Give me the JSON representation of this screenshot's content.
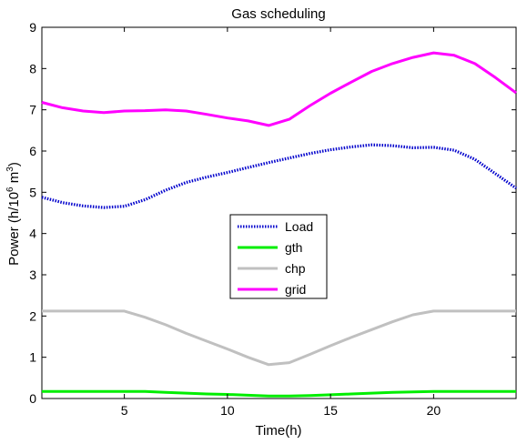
{
  "chart_data": {
    "type": "line",
    "title": "Gas scheduling",
    "xlabel": "Time(h)",
    "ylabel_main": "Power (h/10",
    "ylabel_sup": "6",
    "ylabel_tail": " m",
    "ylabel_sup2": "3",
    "ylabel_close": ")",
    "xlim": [
      1,
      24
    ],
    "ylim": [
      0,
      9
    ],
    "xticks": [
      "5",
      "10",
      "15",
      "20"
    ],
    "yticks": [
      "0",
      "1",
      "2",
      "3",
      "4",
      "5",
      "6",
      "7",
      "8",
      "9"
    ],
    "grid": false,
    "legend_position": "center",
    "x": [
      1,
      2,
      3,
      4,
      5,
      6,
      7,
      8,
      9,
      10,
      11,
      12,
      13,
      14,
      15,
      16,
      17,
      18,
      19,
      20,
      21,
      22,
      23,
      24
    ],
    "series": [
      {
        "name": "Load",
        "color": "#0000cc",
        "style": "dotted",
        "values": [
          4.88,
          4.75,
          4.67,
          4.63,
          4.66,
          4.82,
          5.05,
          5.24,
          5.37,
          5.48,
          5.6,
          5.72,
          5.83,
          5.94,
          6.03,
          6.1,
          6.15,
          6.13,
          6.08,
          6.09,
          6.02,
          5.8,
          5.45,
          5.1
        ]
      },
      {
        "name": "gth",
        "color": "#00ee00",
        "style": "solid",
        "values": [
          0.17,
          0.17,
          0.17,
          0.17,
          0.17,
          0.17,
          0.15,
          0.13,
          0.11,
          0.1,
          0.08,
          0.06,
          0.06,
          0.07,
          0.09,
          0.11,
          0.13,
          0.15,
          0.16,
          0.17,
          0.17,
          0.17,
          0.17,
          0.17
        ]
      },
      {
        "name": "chp",
        "color": "#c0c0c0",
        "style": "solid",
        "values": [
          2.12,
          2.12,
          2.12,
          2.12,
          2.12,
          1.97,
          1.79,
          1.58,
          1.39,
          1.2,
          1.0,
          0.82,
          0.87,
          1.07,
          1.28,
          1.48,
          1.67,
          1.86,
          2.03,
          2.12,
          2.12,
          2.12,
          2.12,
          2.12
        ]
      },
      {
        "name": "grid",
        "color": "#ff00ff",
        "style": "solid",
        "values": [
          7.18,
          7.05,
          6.97,
          6.93,
          6.97,
          6.98,
          7.0,
          6.97,
          6.89,
          6.8,
          6.73,
          6.62,
          6.77,
          7.1,
          7.4,
          7.67,
          7.93,
          8.12,
          8.27,
          8.38,
          8.32,
          8.12,
          7.78,
          7.41
        ]
      }
    ]
  }
}
